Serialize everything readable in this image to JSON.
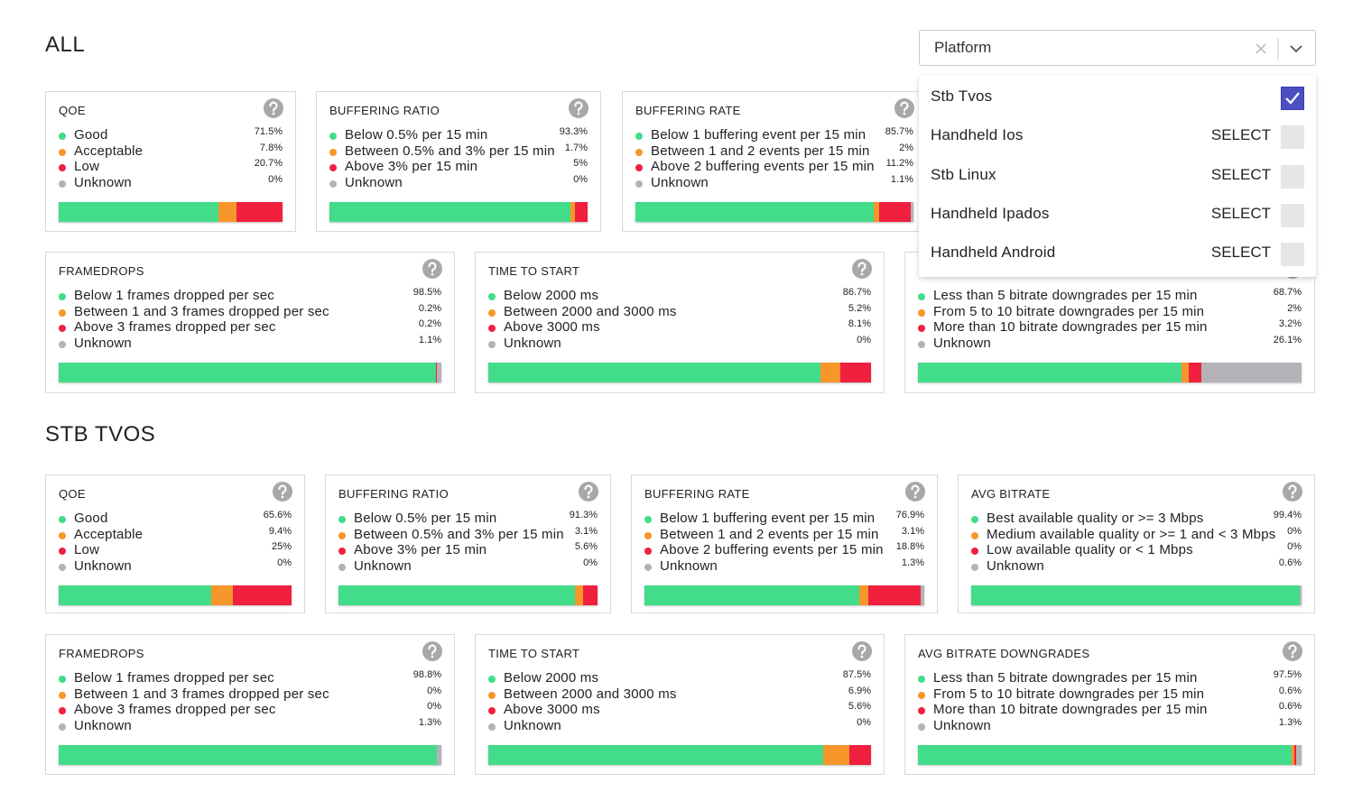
{
  "status_colors": [
    "#42dc8a",
    "#f7962a",
    "#f0203e",
    "#b5b1b8"
  ],
  "platform_select": {
    "placeholder": "Platform",
    "options": [
      {
        "label": "Stb Tvos",
        "selected": true
      },
      {
        "label": "Handheld Ios",
        "action": "SELECT",
        "selected": false
      },
      {
        "label": "Stb Linux",
        "action": "SELECT",
        "selected": false
      },
      {
        "label": "Handheld Ipados",
        "action": "SELECT",
        "selected": false
      },
      {
        "label": "Handheld Android",
        "action": "SELECT",
        "selected": false
      }
    ]
  },
  "sections": [
    {
      "title": "ALL",
      "cards": [
        {
          "title": "QOE",
          "items": [
            {
              "label": "Good",
              "value": 71.5,
              "value_label": "71.5%"
            },
            {
              "label": "Acceptable",
              "value": 7.8,
              "value_label": "7.8%"
            },
            {
              "label": "Low",
              "value": 20.7,
              "value_label": "20.7%"
            },
            {
              "label": "Unknown",
              "value": 0,
              "value_label": "0%"
            }
          ]
        },
        {
          "title": "BUFFERING RATIO",
          "items": [
            {
              "label": "Below 0.5% per 15 min",
              "value": 93.3,
              "value_label": "93.3%"
            },
            {
              "label": "Between 0.5% and 3% per 15 min",
              "value": 1.7,
              "value_label": "1.7%"
            },
            {
              "label": "Above 3% per 15 min",
              "value": 5,
              "value_label": "5%"
            },
            {
              "label": "Unknown",
              "value": 0,
              "value_label": "0%"
            }
          ]
        },
        {
          "title": "BUFFERING RATE",
          "items": [
            {
              "label": "Below 1 buffering event per 15 min",
              "value": 85.7,
              "value_label": "85.7%"
            },
            {
              "label": "Between 1 and 2 events per 15 min",
              "value": 2,
              "value_label": "2%"
            },
            {
              "label": "Above 2 buffering events per 15 min",
              "value": 11.2,
              "value_label": "11.2%"
            },
            {
              "label": "Unknown",
              "value": 1.1,
              "value_label": "1.1%"
            }
          ]
        },
        {
          "title": "FRAMEDROPS",
          "items": [
            {
              "label": "Below 1 frames dropped per sec",
              "value": 98.5,
              "value_label": "98.5%"
            },
            {
              "label": "Between 1 and 3 frames dropped per sec",
              "value": 0.2,
              "value_label": "0.2%"
            },
            {
              "label": "Above 3 frames dropped per sec",
              "value": 0.2,
              "value_label": "0.2%"
            },
            {
              "label": "Unknown",
              "value": 1.1,
              "value_label": "1.1%"
            }
          ]
        },
        {
          "title": "TIME TO START",
          "items": [
            {
              "label": "Below 2000 ms",
              "value": 86.7,
              "value_label": "86.7%"
            },
            {
              "label": "Between 2000 and 3000 ms",
              "value": 5.2,
              "value_label": "5.2%"
            },
            {
              "label": "Above 3000 ms",
              "value": 8.1,
              "value_label": "8.1%"
            },
            {
              "label": "Unknown",
              "value": 0,
              "value_label": "0%"
            }
          ]
        },
        {
          "items": [
            {
              "label": "Less than 5 bitrate downgrades per 15 min",
              "value": 68.7,
              "value_label": "68.7%"
            },
            {
              "label": "From 5 to 10 bitrate downgrades per 15 min",
              "value": 2,
              "value_label": "2%"
            },
            {
              "label": "More than 10 bitrate downgrades per 15 min",
              "value": 3.2,
              "value_label": "3.2%"
            },
            {
              "label": "Unknown",
              "value": 26.1,
              "value_label": "26.1%"
            }
          ]
        }
      ]
    },
    {
      "title": "STB TVOS",
      "cards": [
        {
          "title": "QOE",
          "items": [
            {
              "label": "Good",
              "value": 65.6,
              "value_label": "65.6%"
            },
            {
              "label": "Acceptable",
              "value": 9.4,
              "value_label": "9.4%"
            },
            {
              "label": "Low",
              "value": 25,
              "value_label": "25%"
            },
            {
              "label": "Unknown",
              "value": 0,
              "value_label": "0%"
            }
          ]
        },
        {
          "title": "BUFFERING RATIO",
          "items": [
            {
              "label": "Below 0.5% per 15 min",
              "value": 91.3,
              "value_label": "91.3%"
            },
            {
              "label": "Between 0.5% and 3% per 15 min",
              "value": 3.1,
              "value_label": "3.1%"
            },
            {
              "label": "Above 3% per 15 min",
              "value": 5.6,
              "value_label": "5.6%"
            },
            {
              "label": "Unknown",
              "value": 0,
              "value_label": "0%"
            }
          ]
        },
        {
          "title": "BUFFERING RATE",
          "items": [
            {
              "label": "Below 1 buffering event per 15 min",
              "value": 76.9,
              "value_label": "76.9%"
            },
            {
              "label": "Between 1 and 2 events per 15 min",
              "value": 3.1,
              "value_label": "3.1%"
            },
            {
              "label": "Above 2 buffering events per 15 min",
              "value": 18.8,
              "value_label": "18.8%"
            },
            {
              "label": "Unknown",
              "value": 1.3,
              "value_label": "1.3%"
            }
          ]
        },
        {
          "title": "AVG BITRATE",
          "items": [
            {
              "label": "Best available quality or >= 3 Mbps",
              "value": 99.4,
              "value_label": "99.4%"
            },
            {
              "label": "Medium available quality or >= 1 and < 3 Mbps",
              "value": 0,
              "value_label": "0%"
            },
            {
              "label": "Low available quality or < 1 Mbps",
              "value": 0,
              "value_label": "0%"
            },
            {
              "label": "Unknown",
              "value": 0.6,
              "value_label": "0.6%"
            }
          ]
        },
        {
          "title": "FRAMEDROPS",
          "items": [
            {
              "label": "Below 1 frames dropped per sec",
              "value": 98.8,
              "value_label": "98.8%"
            },
            {
              "label": "Between 1 and 3 frames dropped per sec",
              "value": 0,
              "value_label": "0%"
            },
            {
              "label": "Above 3 frames dropped per sec",
              "value": 0,
              "value_label": "0%"
            },
            {
              "label": "Unknown",
              "value": 1.3,
              "value_label": "1.3%"
            }
          ]
        },
        {
          "title": "TIME TO START",
          "items": [
            {
              "label": "Below 2000 ms",
              "value": 87.5,
              "value_label": "87.5%"
            },
            {
              "label": "Between 2000 and 3000 ms",
              "value": 6.9,
              "value_label": "6.9%"
            },
            {
              "label": "Above 3000 ms",
              "value": 5.6,
              "value_label": "5.6%"
            },
            {
              "label": "Unknown",
              "value": 0,
              "value_label": "0%"
            }
          ]
        },
        {
          "title": "AVG BITRATE DOWNGRADES",
          "items": [
            {
              "label": "Less than 5 bitrate downgrades per 15 min",
              "value": 97.5,
              "value_label": "97.5%"
            },
            {
              "label": "From 5 to 10 bitrate downgrades per 15 min",
              "value": 0.6,
              "value_label": "0.6%"
            },
            {
              "label": "More than 10 bitrate downgrades per 15 min",
              "value": 0.6,
              "value_label": "0.6%"
            },
            {
              "label": "Unknown",
              "value": 1.3,
              "value_label": "1.3%"
            }
          ]
        }
      ]
    }
  ]
}
